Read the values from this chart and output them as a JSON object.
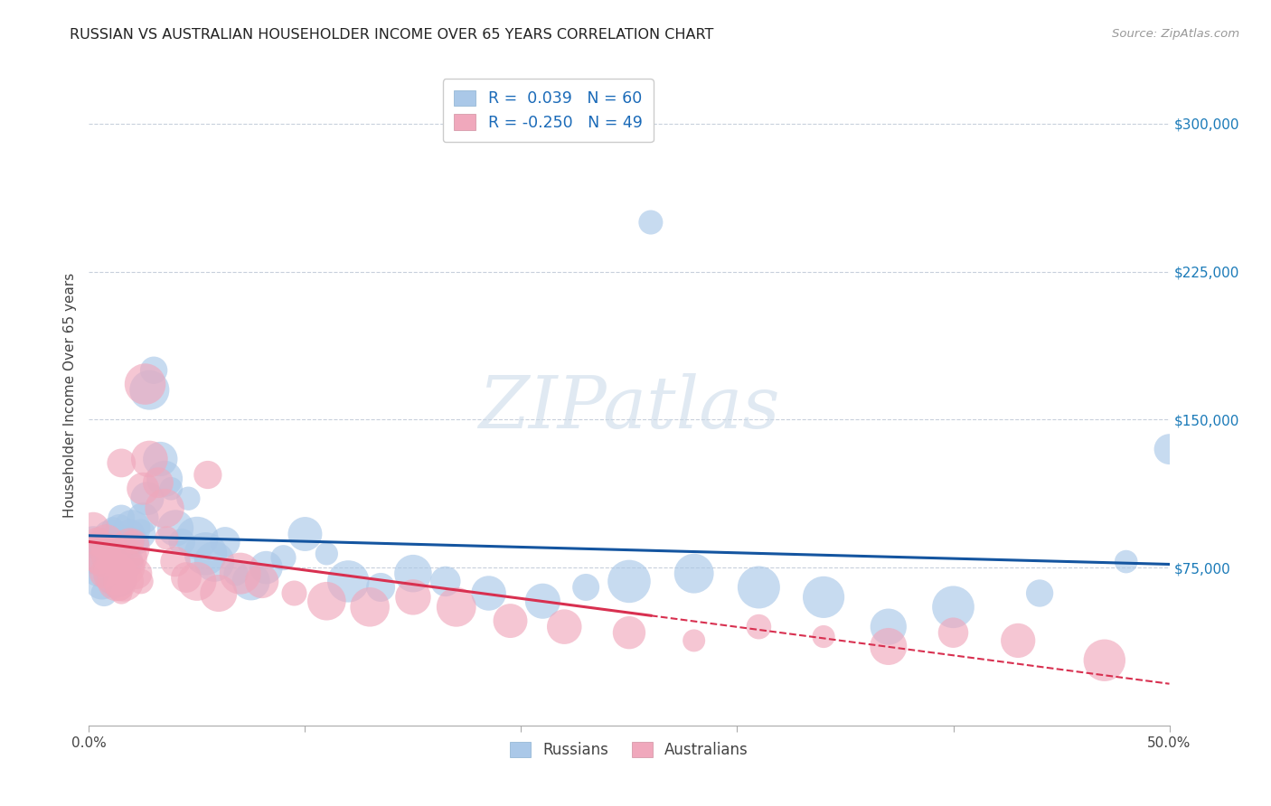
{
  "title": "RUSSIAN VS AUSTRALIAN HOUSEHOLDER INCOME OVER 65 YEARS CORRELATION CHART",
  "source": "Source: ZipAtlas.com",
  "ylabel": "Householder Income Over 65 years",
  "xlim": [
    0.0,
    0.5
  ],
  "ylim": [
    -5000,
    330000
  ],
  "yticks_right": [
    75000,
    150000,
    225000,
    300000
  ],
  "ytick_labels_right": [
    "$75,000",
    "$150,000",
    "$225,000",
    "$300,000"
  ],
  "legend_russian_R": "0.039",
  "legend_russian_N": "60",
  "legend_australian_R": "-0.250",
  "legend_australian_N": "49",
  "russian_color": "#aac8e8",
  "australian_color": "#f0a8bc",
  "russian_line_color": "#1455a0",
  "australian_line_color": "#d83050",
  "watermark": "ZIPatlas",
  "watermark_color": "#c8d8e8",
  "background_color": "#ffffff",
  "grid_color": "#c8d0dc",
  "russians_x": [
    0.002,
    0.004,
    0.005,
    0.006,
    0.007,
    0.008,
    0.008,
    0.009,
    0.01,
    0.011,
    0.011,
    0.012,
    0.013,
    0.014,
    0.015,
    0.016,
    0.016,
    0.017,
    0.018,
    0.019,
    0.02,
    0.022,
    0.024,
    0.025,
    0.027,
    0.028,
    0.03,
    0.033,
    0.035,
    0.038,
    0.04,
    0.043,
    0.046,
    0.05,
    0.054,
    0.058,
    0.063,
    0.068,
    0.075,
    0.082,
    0.09,
    0.1,
    0.11,
    0.12,
    0.135,
    0.15,
    0.165,
    0.185,
    0.21,
    0.23,
    0.25,
    0.28,
    0.31,
    0.34,
    0.37,
    0.4,
    0.26,
    0.44,
    0.48,
    0.5
  ],
  "russians_y": [
    88000,
    82000,
    75000,
    68000,
    62000,
    72000,
    88000,
    85000,
    90000,
    80000,
    95000,
    75000,
    70000,
    95000,
    100000,
    88000,
    82000,
    78000,
    88000,
    92000,
    95000,
    88000,
    92000,
    100000,
    110000,
    165000,
    175000,
    130000,
    120000,
    115000,
    95000,
    88000,
    110000,
    90000,
    82000,
    78000,
    88000,
    72000,
    68000,
    75000,
    80000,
    92000,
    82000,
    68000,
    65000,
    72000,
    68000,
    62000,
    58000,
    65000,
    68000,
    72000,
    65000,
    60000,
    45000,
    55000,
    250000,
    62000,
    78000,
    135000
  ],
  "australians_x": [
    0.002,
    0.004,
    0.005,
    0.006,
    0.007,
    0.008,
    0.009,
    0.01,
    0.011,
    0.012,
    0.013,
    0.014,
    0.015,
    0.016,
    0.017,
    0.018,
    0.019,
    0.02,
    0.022,
    0.024,
    0.026,
    0.028,
    0.032,
    0.036,
    0.04,
    0.045,
    0.05,
    0.06,
    0.07,
    0.08,
    0.095,
    0.11,
    0.13,
    0.15,
    0.17,
    0.195,
    0.22,
    0.25,
    0.28,
    0.31,
    0.34,
    0.37,
    0.4,
    0.43,
    0.47,
    0.015,
    0.025,
    0.035,
    0.055
  ],
  "australians_y": [
    95000,
    88000,
    82000,
    78000,
    72000,
    88000,
    80000,
    82000,
    78000,
    72000,
    68000,
    65000,
    62000,
    68000,
    75000,
    80000,
    85000,
    88000,
    72000,
    68000,
    168000,
    130000,
    118000,
    90000,
    78000,
    70000,
    68000,
    62000,
    72000,
    68000,
    62000,
    58000,
    55000,
    60000,
    55000,
    48000,
    45000,
    42000,
    38000,
    45000,
    40000,
    35000,
    42000,
    38000,
    28000,
    128000,
    115000,
    105000,
    122000
  ]
}
